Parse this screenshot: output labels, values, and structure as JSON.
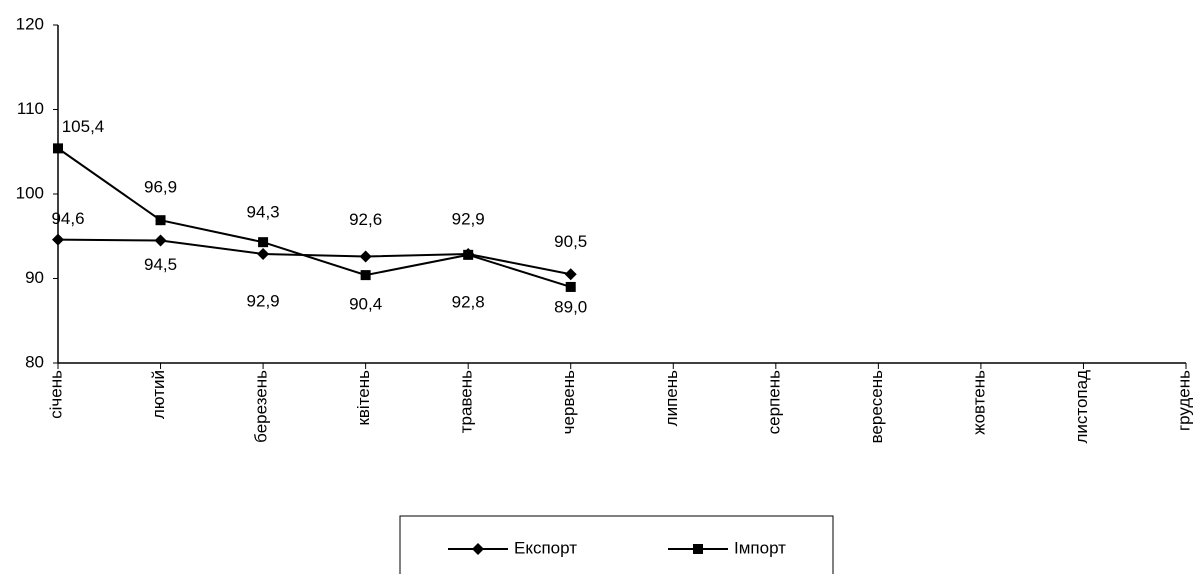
{
  "chart_data": {
    "type": "line",
    "categories": [
      "січень",
      "лютий",
      "березень",
      "квітень",
      "травень",
      "червень",
      "липень",
      "серпень",
      "вересень",
      "жовтень",
      "листопад",
      "грудень"
    ],
    "series": [
      {
        "name": "Експорт",
        "color": "#000000",
        "marker": "diamond",
        "values": [
          94.6,
          94.5,
          92.9,
          92.6,
          92.9,
          90.5,
          null,
          null,
          null,
          null,
          null,
          null
        ],
        "value_labels": [
          "94,6",
          "94,5",
          "92,9",
          "92,6",
          "92,9",
          "90,5",
          null,
          null,
          null,
          null,
          null,
          null
        ]
      },
      {
        "name": "Імпорт",
        "color": "#000000",
        "marker": "square",
        "values": [
          105.4,
          96.9,
          94.3,
          90.4,
          92.8,
          89.0,
          null,
          null,
          null,
          null,
          null,
          null
        ],
        "value_labels": [
          "105,4",
          "96,9",
          "94,3",
          "90,4",
          "92,8",
          "89,0",
          null,
          null,
          null,
          null,
          null,
          null
        ]
      }
    ],
    "ylim": [
      80,
      120
    ],
    "yticks": [
      80,
      90,
      100,
      110,
      120
    ],
    "grid": false,
    "legend": "bottom"
  }
}
